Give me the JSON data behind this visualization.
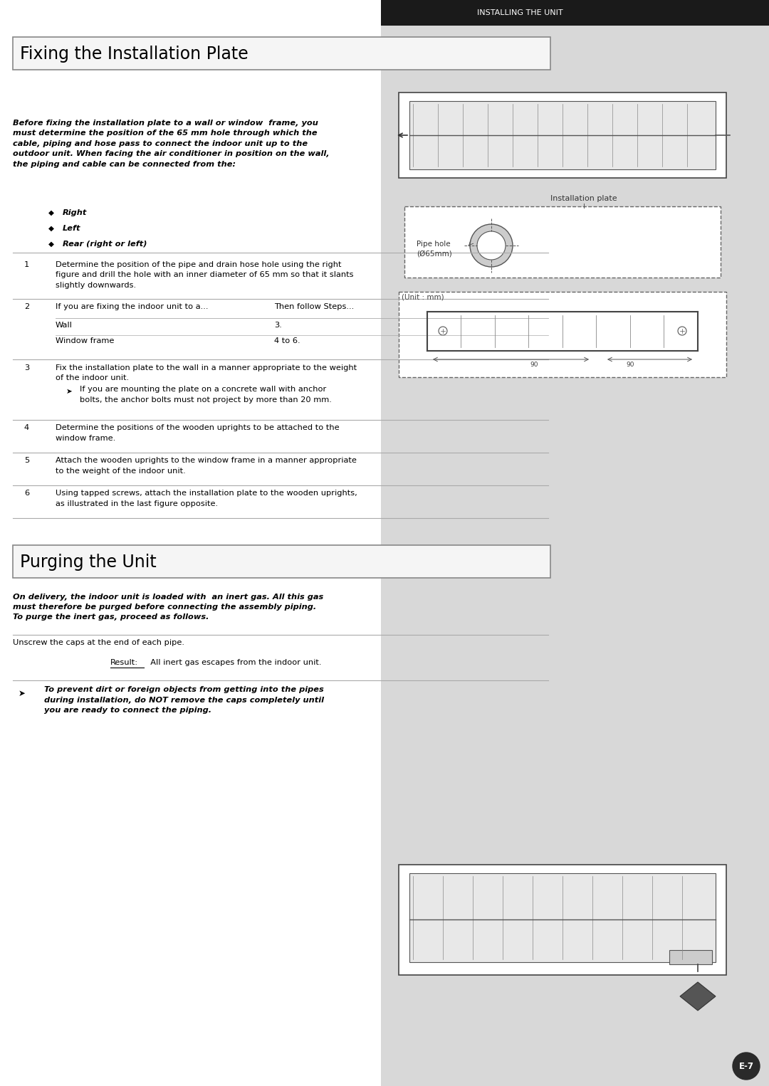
{
  "page_bg": "#ffffff",
  "right_panel_bg": "#d8d8d8",
  "header_bg": "#1a1a1a",
  "header_text": "Installing the Unit",
  "header_text_color": "#ffffff",
  "section1_title": "Fixing the Installation Plate",
  "section2_title": "Purging the Unit",
  "intro_text": "Before fixing the installation plate to a wall or window  frame, you\nmust determine the position of the 65 mm hole through which the\ncable, piping and hose pass to connect the indoor unit up to the\noutdoor unit. When facing the air conditioner in position on the wall,\nthe piping and cable can be connected from the:",
  "bullet_items": [
    "Right",
    "Left",
    "Rear (right or left)"
  ],
  "steps": [
    {
      "num": "1",
      "text": "Determine the position of the pipe and drain hose hole using the right\nfigure and drill the hole with an inner diameter of 65 mm so that it slants\nslightly downwards."
    },
    {
      "num": "2",
      "col1": "If you are fixing the indoor unit to a...",
      "col2": "Then follow Steps...",
      "rows": [
        [
          "Wall",
          "3."
        ],
        [
          "Window frame",
          "4 to 6."
        ]
      ]
    },
    {
      "num": "3",
      "text": "Fix the installation plate to the wall in a manner appropriate to the weight\nof the indoor unit.",
      "sub": "If you are mounting the plate on a concrete wall with anchor\nbolts, the anchor bolts must not project by more than 20 mm."
    },
    {
      "num": "4",
      "text": "Determine the positions of the wooden uprights to be attached to the\nwindow frame."
    },
    {
      "num": "5",
      "text": "Attach the wooden uprights to the window frame in a manner appropriate\nto the weight of the indoor unit."
    },
    {
      "num": "6",
      "text": "Using tapped screws, attach the installation plate to the wooden uprights,\nas illustrated in the last figure opposite."
    }
  ],
  "purge_intro": "On delivery, the indoor unit is loaded with  an inert gas. All this gas\nmust therefore be purged before connecting the assembly piping.\nTo purge the inert gas, proceed as follows.",
  "purge_step": "Unscrew the caps at the end of each pipe.",
  "purge_result_label": "Result:",
  "purge_result_text": "  All inert gas escapes from the indoor unit.",
  "purge_warning": "To prevent dirt or foreign objects from getting into the pipes\nduring installation, do NOT remove the caps completely until\nyou are ready to connect the piping.",
  "page_num": "E-7",
  "line_color": "#aaaaaa",
  "text_color": "#000000",
  "title_box_border": "#888888",
  "title_box_fill": "#f5f5f5"
}
